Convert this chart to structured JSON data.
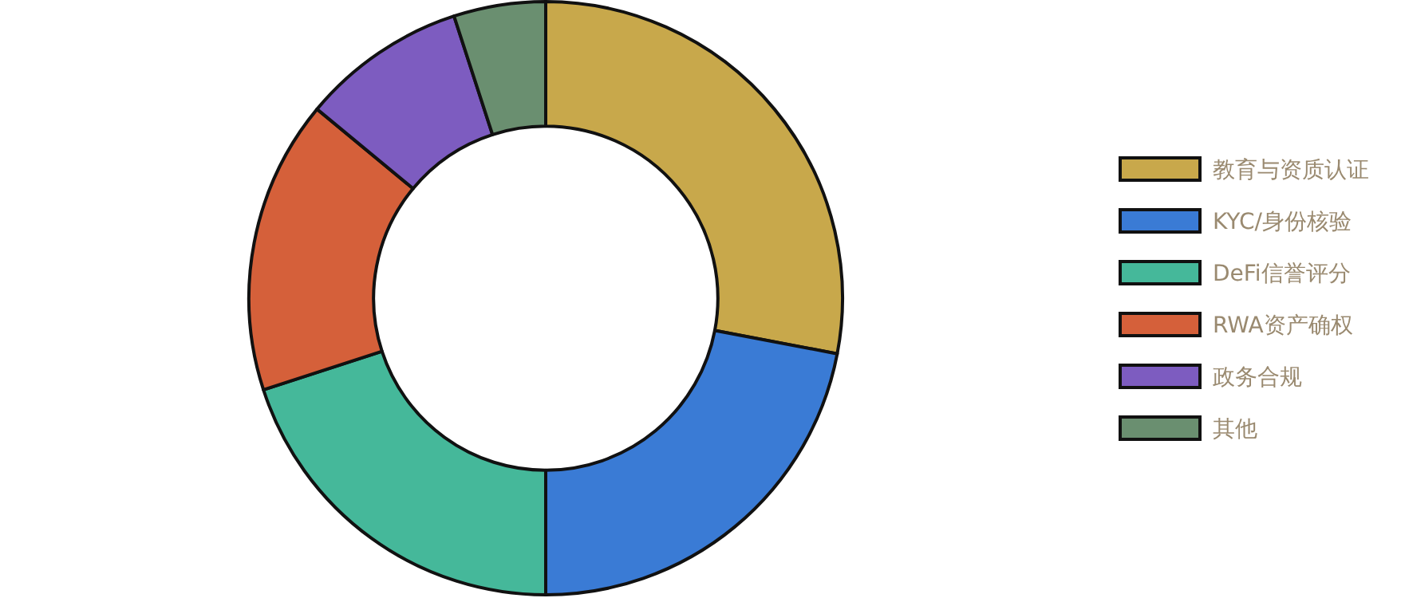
{
  "chart_data": {
    "type": "donut",
    "categories": [
      "教育与资质认证",
      "KYC/身份核验",
      "DeFi信誉评分",
      "RWA资产确权",
      "政务合规",
      "其他"
    ],
    "values": [
      28,
      22,
      20,
      16,
      9,
      5
    ],
    "colors": [
      "#c8a84b",
      "#3a7bd5",
      "#45b89a",
      "#d5603a",
      "#7d5cc0",
      "#6a8f70"
    ],
    "legend": "right"
  }
}
